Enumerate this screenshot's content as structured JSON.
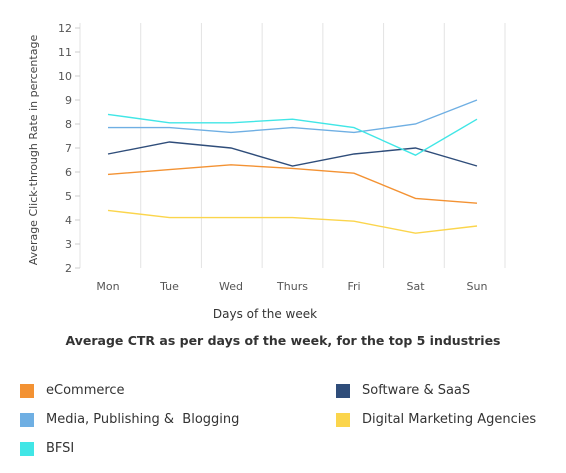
{
  "chart_data": {
    "type": "line",
    "title": "Average CTR as per days of the week, for the top 5 industries",
    "xlabel": "Days of the week",
    "ylabel": "Average Click-through Rate in percentage",
    "categories": [
      "Mon",
      "Tue",
      "Wed",
      "Thurs",
      "Fri",
      "Sat",
      "Sun"
    ],
    "y_ticks": [
      2,
      3,
      4,
      5,
      6,
      7,
      8,
      9,
      10,
      11,
      12
    ],
    "ylim": [
      2,
      12
    ],
    "grid": "vertical",
    "series": [
      {
        "name": "eCommerce",
        "color": "#f39233",
        "values": [
          5.9,
          6.1,
          6.3,
          6.15,
          5.95,
          4.9,
          4.7
        ]
      },
      {
        "name": "Software & SaaS",
        "color": "#2f4d7a",
        "values": [
          6.75,
          7.25,
          7.0,
          6.25,
          6.75,
          7.0,
          6.25
        ]
      },
      {
        "name": "Media, Publishing &  Blogging",
        "color": "#6fafe3",
        "values": [
          7.85,
          7.85,
          7.65,
          7.85,
          7.65,
          8.0,
          9.0
        ]
      },
      {
        "name": "Digital Marketing Agencies",
        "color": "#fbd54c",
        "values": [
          4.4,
          4.1,
          4.1,
          4.1,
          3.95,
          3.45,
          3.75
        ]
      },
      {
        "name": "BFSI",
        "color": "#41e6e6",
        "values": [
          8.4,
          8.05,
          8.05,
          8.2,
          7.85,
          6.7,
          8.2
        ]
      }
    ]
  }
}
